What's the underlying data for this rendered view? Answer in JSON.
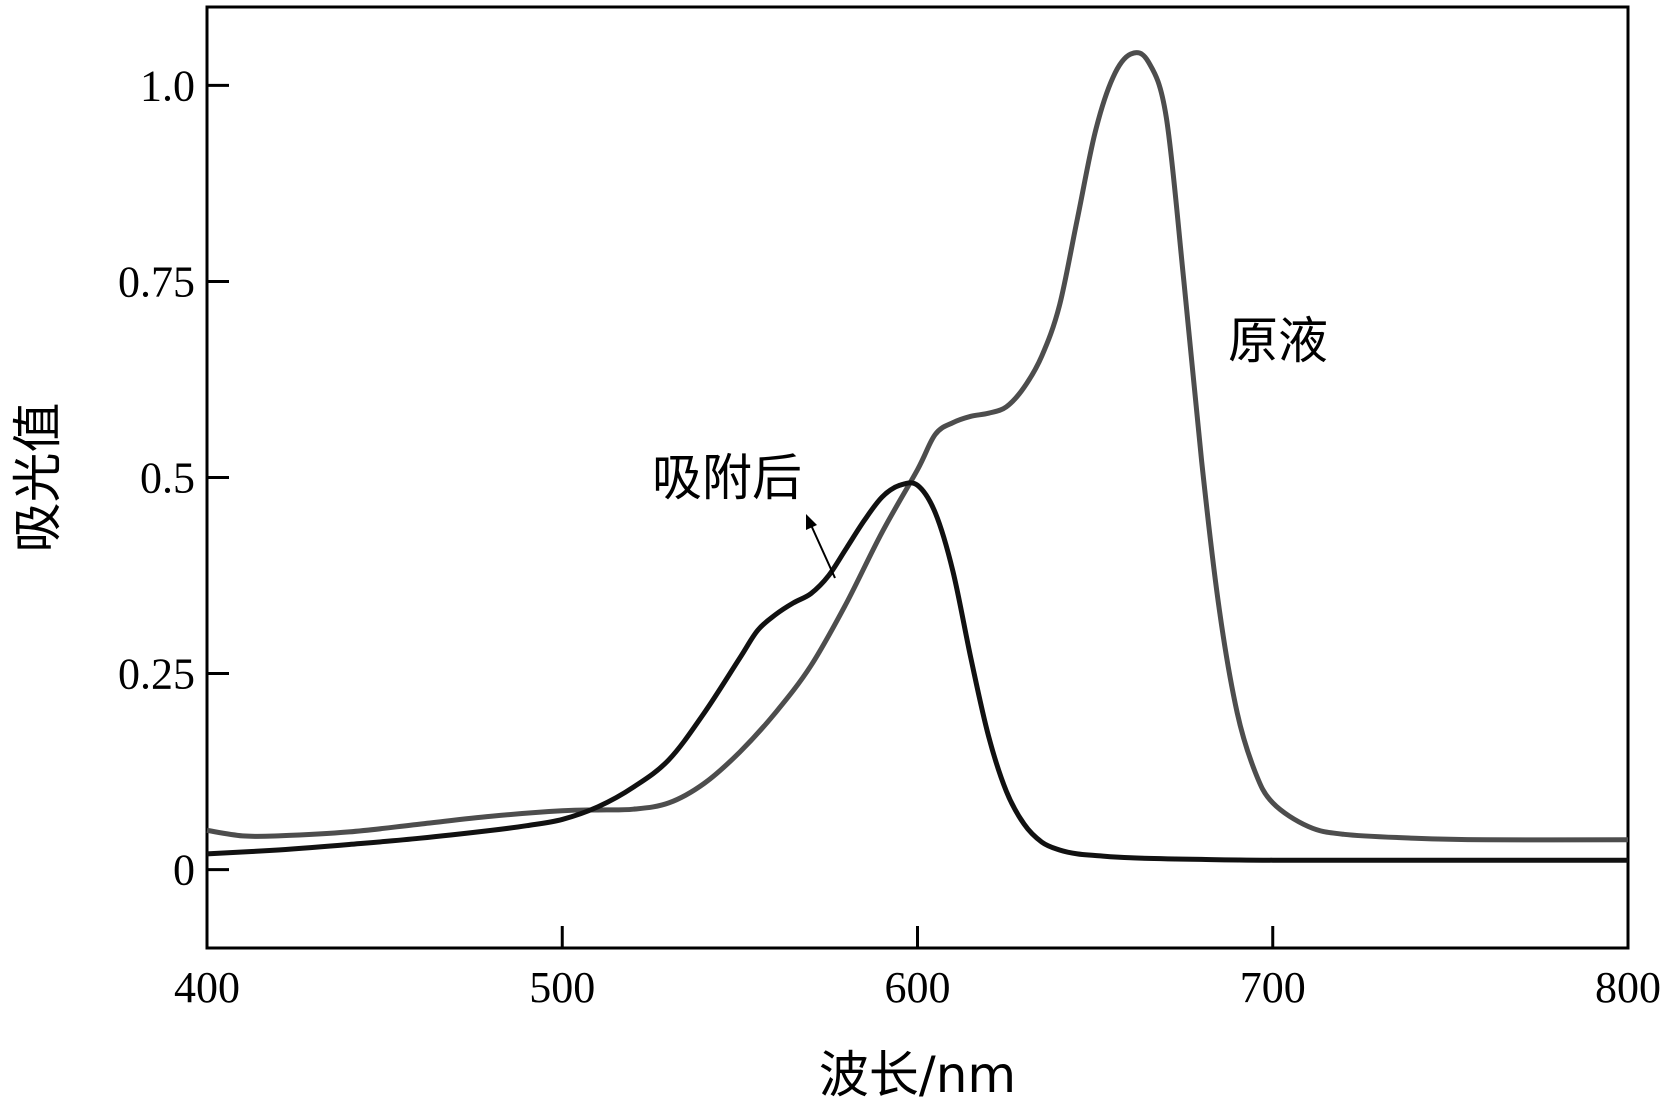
{
  "chart_data": {
    "type": "line",
    "xlabel": "波长/nm",
    "ylabel": "吸光值",
    "xlim": [
      400,
      800
    ],
    "ylim": [
      -0.1,
      1.1
    ],
    "x_ticks": [
      400,
      500,
      600,
      700,
      800
    ],
    "x_tick_labels": [
      "400",
      "500",
      "600",
      "700",
      "800"
    ],
    "y_ticks": [
      0,
      0.25,
      0.5,
      0.75,
      1.0
    ],
    "y_tick_labels": [
      "0",
      "0.25",
      "0.5",
      "0.75",
      "1.0"
    ],
    "grid": false,
    "series": [
      {
        "name": "原液",
        "color": "#4d4d4d",
        "x": [
          400,
          410,
          420,
          440,
          460,
          480,
          500,
          510,
          520,
          530,
          540,
          550,
          560,
          570,
          580,
          590,
          600,
          605,
          610,
          615,
          620,
          625,
          630,
          635,
          640,
          645,
          650,
          655,
          660,
          665,
          670,
          675,
          680,
          685,
          690,
          695,
          700,
          710,
          720,
          740,
          760,
          800
        ],
        "y": [
          0.05,
          0.043,
          0.043,
          0.048,
          0.058,
          0.068,
          0.075,
          0.076,
          0.077,
          0.085,
          0.11,
          0.15,
          0.2,
          0.26,
          0.34,
          0.43,
          0.51,
          0.555,
          0.57,
          0.578,
          0.582,
          0.59,
          0.615,
          0.655,
          0.72,
          0.83,
          0.94,
          1.01,
          1.04,
          1.03,
          0.96,
          0.75,
          0.52,
          0.33,
          0.2,
          0.125,
          0.085,
          0.055,
          0.045,
          0.04,
          0.038,
          0.038
        ]
      },
      {
        "name": "吸附后",
        "color": "#111111",
        "x": [
          400,
          420,
          440,
          460,
          480,
          490,
          500,
          510,
          520,
          530,
          540,
          550,
          555,
          560,
          565,
          570,
          575,
          580,
          585,
          590,
          595,
          600,
          605,
          610,
          615,
          620,
          625,
          630,
          635,
          640,
          645,
          650,
          660,
          680,
          700,
          750,
          800
        ],
        "y": [
          0.02,
          0.025,
          0.032,
          0.04,
          0.05,
          0.056,
          0.064,
          0.08,
          0.105,
          0.14,
          0.2,
          0.27,
          0.305,
          0.325,
          0.34,
          0.352,
          0.375,
          0.41,
          0.445,
          0.475,
          0.49,
          0.49,
          0.455,
          0.38,
          0.27,
          0.17,
          0.1,
          0.058,
          0.035,
          0.025,
          0.02,
          0.018,
          0.015,
          0.013,
          0.012,
          0.012,
          0.012
        ]
      }
    ],
    "annotations": [
      {
        "text": "原液",
        "series": "原液"
      },
      {
        "text": "吸附后",
        "series": "吸附后",
        "arrow": true
      }
    ]
  }
}
